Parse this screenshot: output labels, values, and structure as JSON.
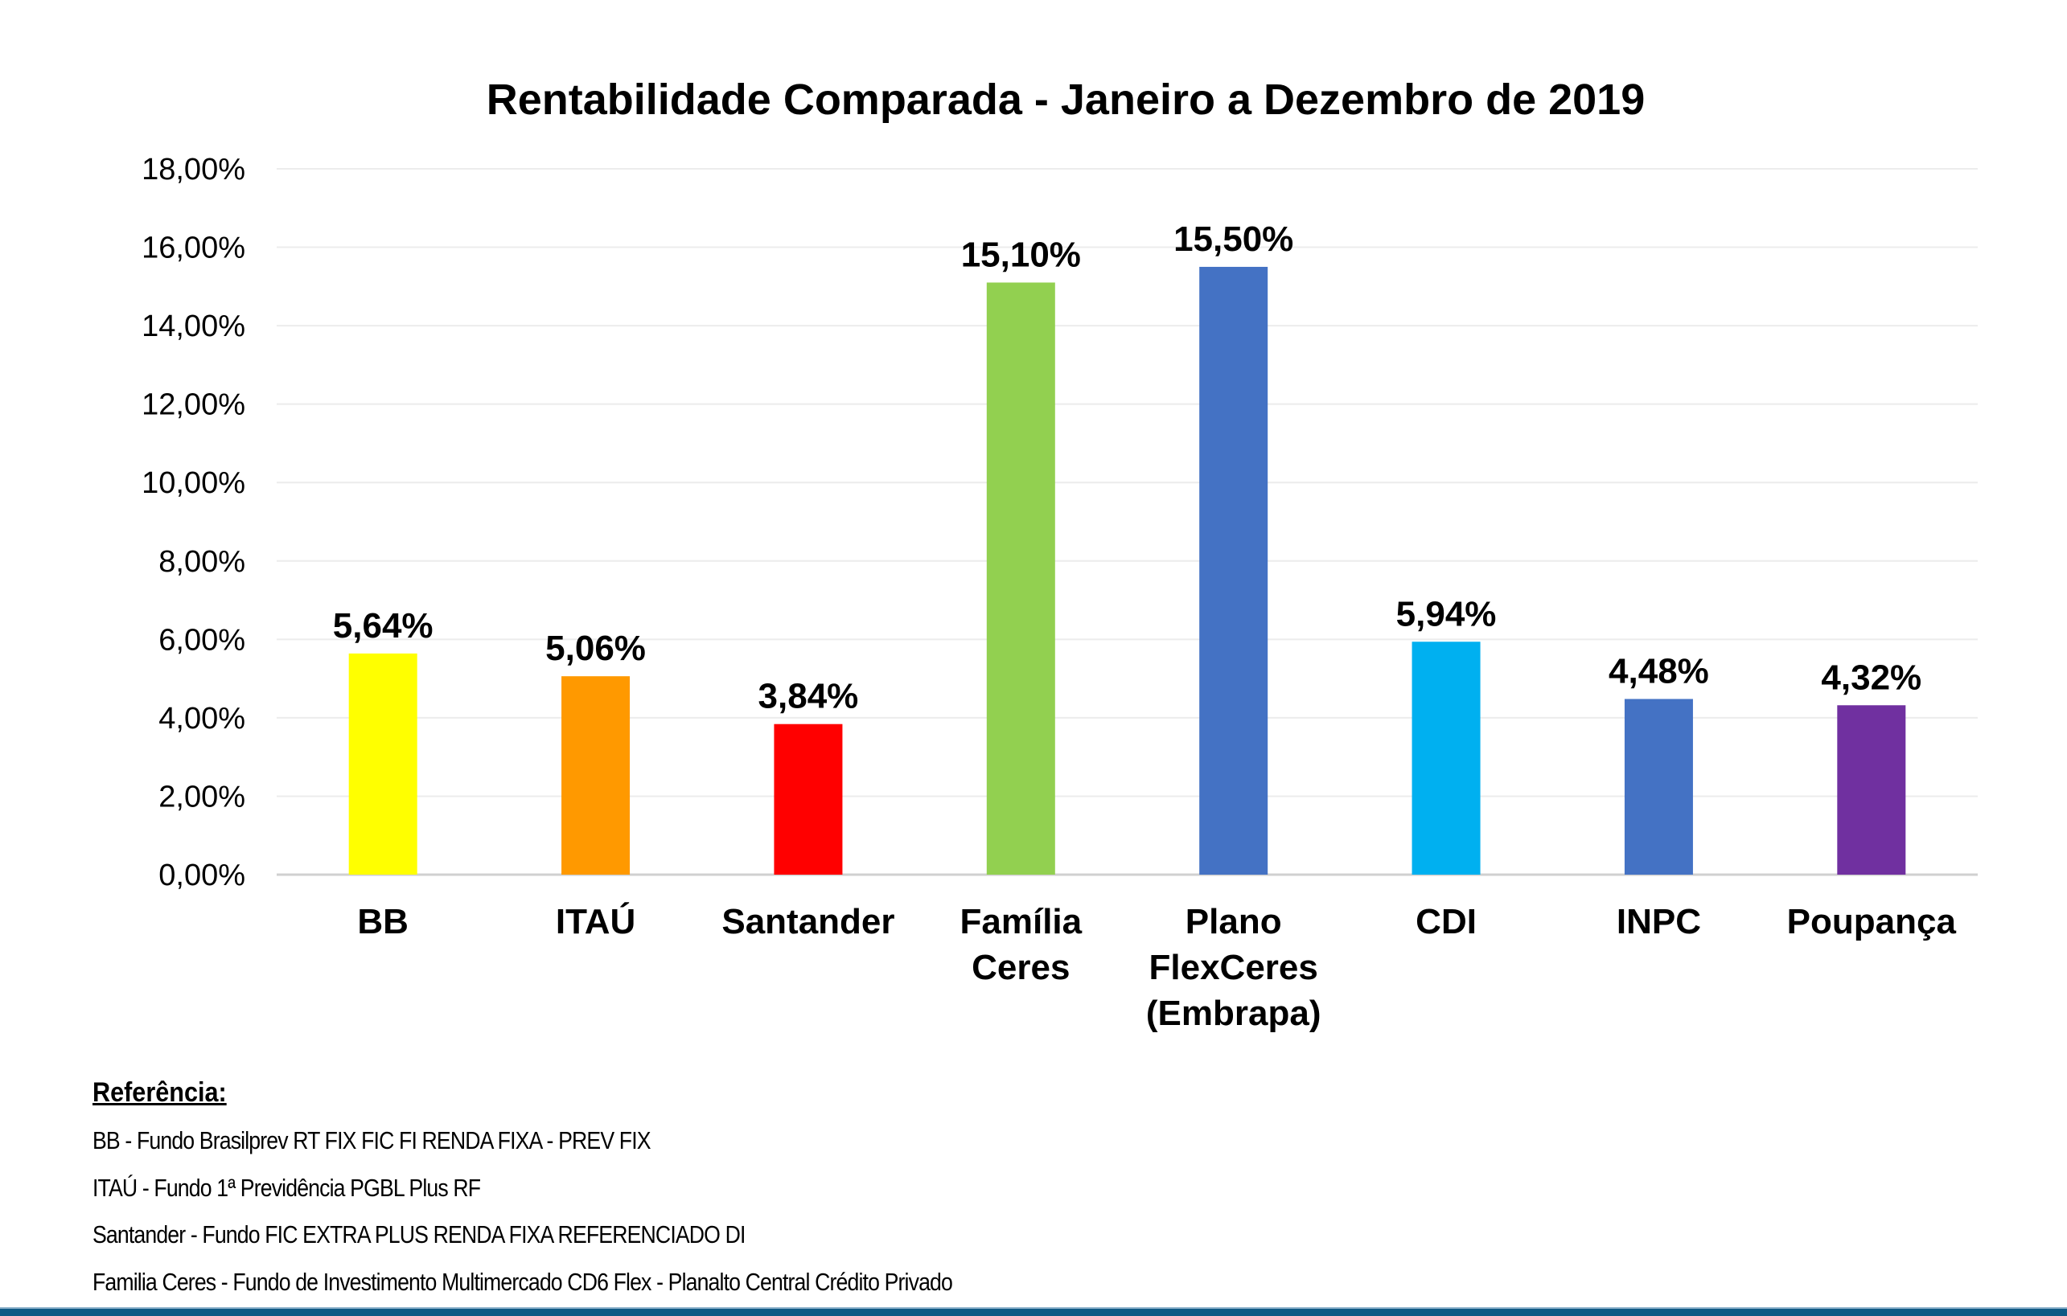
{
  "chart_data": {
    "type": "bar",
    "title": "Rentabilidade Comparada - Janeiro a Dezembro de 2019",
    "xlabel": "",
    "ylabel": "",
    "ylim": [
      0,
      18
    ],
    "yticks": [
      "0,00%",
      "2,00%",
      "4,00%",
      "6,00%",
      "8,00%",
      "10,00%",
      "12,00%",
      "14,00%",
      "16,00%",
      "18,00%"
    ],
    "grid": true,
    "categories": [
      [
        "BB"
      ],
      [
        "ITAÚ"
      ],
      [
        "Santander"
      ],
      [
        "Família",
        "Ceres"
      ],
      [
        "Plano",
        "FlexCeres",
        "(Embrapa)"
      ],
      [
        "CDI"
      ],
      [
        "INPC"
      ],
      [
        "Poupança"
      ]
    ],
    "values": [
      5.64,
      5.06,
      3.84,
      15.1,
      15.5,
      5.94,
      4.48,
      4.32
    ],
    "data_labels": [
      "5,64%",
      "5,06%",
      "3,84%",
      "15,10%",
      "15,50%",
      "5,94%",
      "4,48%",
      "4,32%"
    ],
    "colors": [
      "#FFFF00",
      "#FF9900",
      "#FF0000",
      "#92D050",
      "#4472C4",
      "#00B0F0",
      "#4472C4",
      "#7030A0"
    ]
  },
  "references": {
    "heading": "Referência:",
    "items": [
      "BB - Fundo Brasilprev RT FIX FIC FI RENDA FIXA - PREV FIX",
      "ITAÚ - Fundo 1ª Previdência PGBL Plus RF",
      "Santander - Fundo FIC EXTRA PLUS RENDA FIXA REFERENCIADO DI",
      "Familia Ceres - Fundo de Investimento Multimercado CD6 Flex - Planalto Central Crédito Privado"
    ]
  },
  "colors": {
    "bottom_bar": "#0f5a85"
  }
}
